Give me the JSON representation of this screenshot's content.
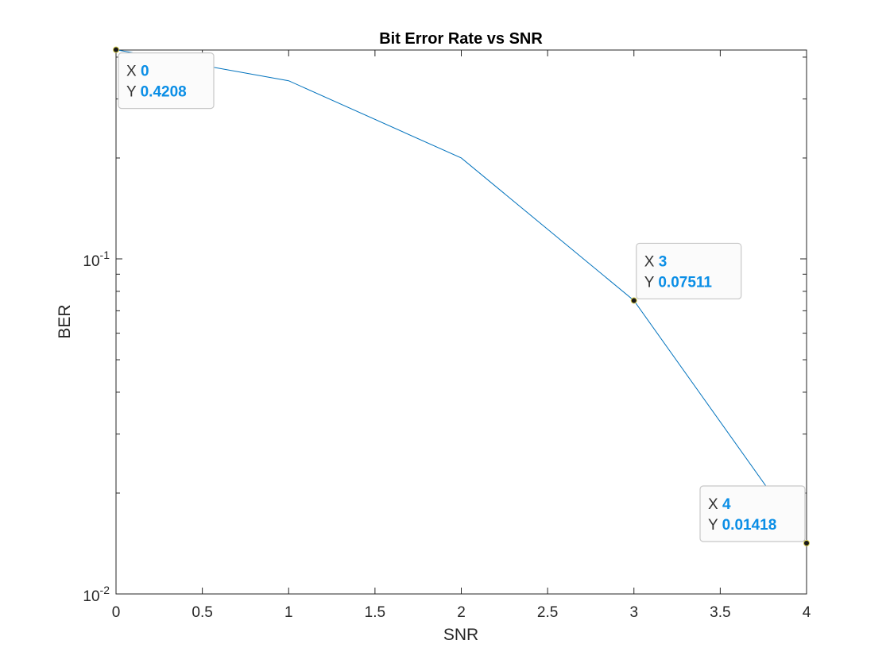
{
  "chart_data": {
    "type": "line",
    "title": "Bit Error Rate vs SNR",
    "xlabel": "SNR",
    "ylabel": "BER",
    "x": [
      0,
      1,
      2,
      3,
      4
    ],
    "series": [
      {
        "values": [
          0.4208,
          0.34,
          0.2,
          0.07511,
          0.01418
        ],
        "color": "#0072bd"
      }
    ],
    "xlim": [
      0,
      4
    ],
    "ylim": [
      0.01,
      0.42
    ],
    "yscale": "log",
    "grid": false,
    "xticks": [
      0,
      0.5,
      1,
      1.5,
      2,
      2.5,
      3,
      3.5,
      4
    ],
    "xtick_labels": [
      "0",
      "0.5",
      "1",
      "1.5",
      "2",
      "2.5",
      "3",
      "3.5",
      "4"
    ],
    "yticks": [
      0.1,
      0.01
    ],
    "ytick_labels": [
      {
        "base": "10",
        "exp": "-1"
      },
      {
        "base": "10",
        "exp": "-2"
      }
    ],
    "datatips": [
      {
        "x_label": "X",
        "x_value": "0",
        "y_label": "Y",
        "y_value": "0.4208",
        "point_index": 0
      },
      {
        "x_label": "X",
        "x_value": "3",
        "y_label": "Y",
        "y_value": "0.07511",
        "point_index": 3
      },
      {
        "x_label": "X",
        "x_value": "4",
        "y_label": "Y",
        "y_value": "0.01418",
        "point_index": 4
      }
    ],
    "datatip_value_color": "#0a8ee6"
  }
}
